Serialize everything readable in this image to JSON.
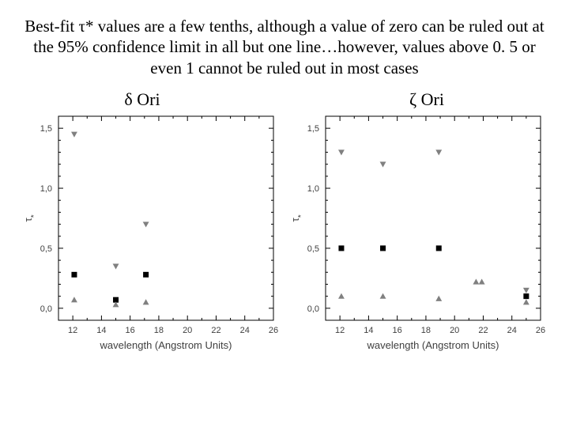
{
  "caption": "Best-fit τ* values are a few tenths, although a value of zero can be ruled out at the 95% confidence limit in all but one line…however, values above 0. 5 or even 1 cannot be ruled out in most cases",
  "panels": {
    "left": {
      "title": "δ Ori"
    },
    "right": {
      "title": "ζ Ori"
    }
  },
  "chart": {
    "type": "scatter",
    "xlabel": "wavelength (Angstrom Units)",
    "ylabel": "τ*",
    "xlim": [
      11,
      26
    ],
    "ylim": [
      -0.1,
      1.6
    ],
    "xticks": [
      12,
      14,
      16,
      18,
      20,
      22,
      24,
      26
    ],
    "yticks": [
      0.0,
      0.5,
      1.0,
      1.5
    ],
    "ytick_labels": [
      "0,0",
      "0,5",
      "1,0",
      "1,5"
    ],
    "minor_x_step": 1,
    "minor_y_step": 0.1,
    "plot_bg": "#ffffff",
    "axis_color": "#000000",
    "tick_label_color": "#404040",
    "tick_fontsize": 11,
    "label_fontsize": 13,
    "marker_colors": {
      "square": "#000000",
      "tri_down": "#808080",
      "tri_up": "#808080"
    },
    "marker_size": 7
  },
  "data_left": {
    "squares": [
      {
        "x": 12.1,
        "y": 0.28
      },
      {
        "x": 15.0,
        "y": 0.07
      },
      {
        "x": 17.1,
        "y": 0.28
      }
    ],
    "tri_down": [
      {
        "x": 12.1,
        "y": 1.45
      },
      {
        "x": 15.0,
        "y": 0.35
      },
      {
        "x": 17.1,
        "y": 0.7
      }
    ],
    "tri_up": [
      {
        "x": 12.1,
        "y": 0.07
      },
      {
        "x": 15.0,
        "y": 0.03
      },
      {
        "x": 17.1,
        "y": 0.05
      }
    ]
  },
  "data_right": {
    "squares": [
      {
        "x": 12.1,
        "y": 0.5
      },
      {
        "x": 15.0,
        "y": 0.5
      },
      {
        "x": 18.9,
        "y": 0.5
      },
      {
        "x": 25.0,
        "y": 0.1
      }
    ],
    "tri_down": [
      {
        "x": 12.1,
        "y": 1.3
      },
      {
        "x": 15.0,
        "y": 1.2
      },
      {
        "x": 18.9,
        "y": 1.3
      },
      {
        "x": 25.0,
        "y": 0.15
      }
    ],
    "tri_up": [
      {
        "x": 12.1,
        "y": 0.1
      },
      {
        "x": 15.0,
        "y": 0.1
      },
      {
        "x": 18.9,
        "y": 0.08
      },
      {
        "x": 21.5,
        "y": 0.22
      },
      {
        "x": 21.9,
        "y": 0.22
      },
      {
        "x": 25.0,
        "y": 0.05
      }
    ]
  }
}
